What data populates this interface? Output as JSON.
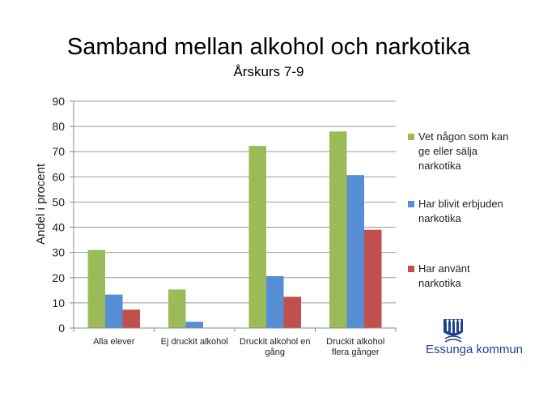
{
  "chart_data": {
    "type": "bar",
    "title": "Samband mellan alkohol och narkotika",
    "subtitle": "Årskurs 7-9",
    "ylabel": "Andel i procent",
    "xlabel": "",
    "ylim": [
      0,
      90
    ],
    "yticks": [
      0,
      10,
      20,
      30,
      40,
      50,
      60,
      70,
      80,
      90
    ],
    "grid": true,
    "legend_position": "right",
    "categories": [
      [
        "Alla elever"
      ],
      [
        "Ej druckit alkohol"
      ],
      [
        "Druckit alkohol en",
        "gång"
      ],
      [
        "Druckit alkohol",
        "flera gånger"
      ]
    ],
    "series": [
      {
        "name": [
          "Vet någon som kan",
          "ge eller sälja",
          "narkotika"
        ],
        "color": "#9bbb59",
        "values": [
          31,
          15.3,
          72.3,
          78
        ]
      },
      {
        "name": [
          "Har blivit erbjuden",
          "narkotika"
        ],
        "color": "#558ed5",
        "values": [
          13.3,
          2.5,
          20.6,
          60.7
        ]
      },
      {
        "name": [
          "Har använt",
          "narkotika"
        ],
        "color": "#c0504d",
        "values": [
          7.3,
          null,
          12.4,
          39
        ]
      }
    ]
  },
  "logo": {
    "text": "Essunga kommun",
    "icon": "essunga-crest-icon",
    "color": "#1f3f8f"
  }
}
